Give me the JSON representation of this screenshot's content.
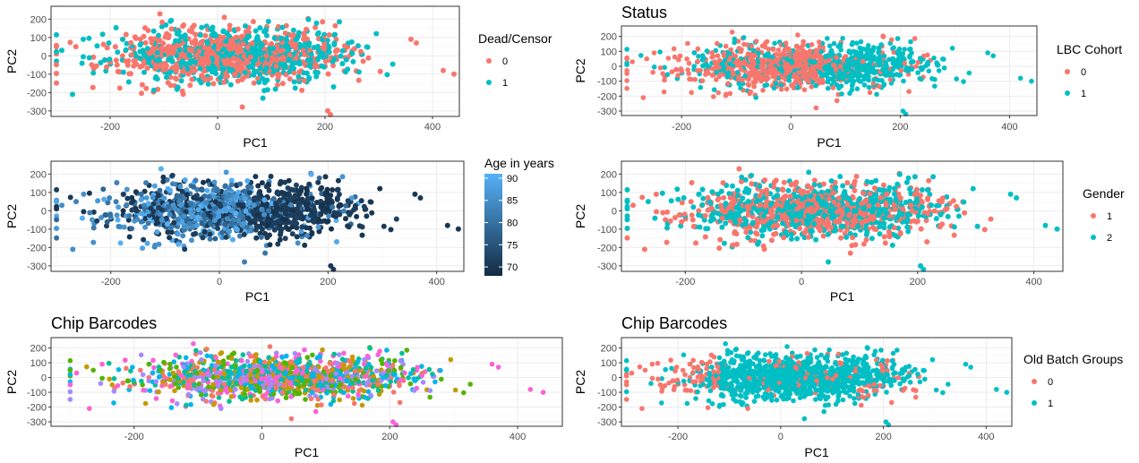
{
  "colors": {
    "red": "#F8766D",
    "teal": "#00BFC4",
    "age_low": "#132B43",
    "age_high": "#56B1F7",
    "chip_palette": [
      "#F8766D",
      "#C49A00",
      "#53B400",
      "#00C094",
      "#00B6EB",
      "#A58AFF",
      "#FB61D7"
    ]
  },
  "chart_data": [
    {
      "id": "p1",
      "type": "scatter",
      "title": "",
      "xlabel": "PC1",
      "ylabel": "PC2",
      "xlim": [
        -310,
        450
      ],
      "ylim": [
        -330,
        270
      ],
      "xticks": [
        -200,
        0,
        200,
        400
      ],
      "yticks": [
        -300,
        -200,
        -100,
        0,
        100,
        200
      ],
      "legend": {
        "kind": "discrete",
        "title": "Dead/Censor",
        "entries": [
          "0",
          "1"
        ],
        "colors": [
          "#F8766D",
          "#00BFC4"
        ],
        "position": "right"
      },
      "color_by": "dead",
      "grid": true
    },
    {
      "id": "p2",
      "type": "scatter",
      "title": "Status",
      "xlabel": "PC1",
      "ylabel": "PC2",
      "xlim": [
        -310,
        450
      ],
      "ylim": [
        -330,
        270
      ],
      "xticks": [
        -200,
        0,
        200,
        400
      ],
      "yticks": [
        -300,
        -200,
        -100,
        0,
        100,
        200
      ],
      "legend": {
        "kind": "discrete",
        "title": "LBC Cohort",
        "entries": [
          "0",
          "1"
        ],
        "colors": [
          "#F8766D",
          "#00BFC4"
        ],
        "position": "right"
      },
      "color_by": "cohort",
      "grid": true
    },
    {
      "id": "p3",
      "type": "scatter",
      "title": "",
      "xlabel": "PC1",
      "ylabel": "PC2",
      "xlim": [
        -310,
        450
      ],
      "ylim": [
        -330,
        270
      ],
      "xticks": [
        -200,
        0,
        200,
        400
      ],
      "yticks": [
        -300,
        -200,
        -100,
        0,
        100,
        200
      ],
      "legend": {
        "kind": "continuous",
        "title": "Age in years",
        "ticks": [
          "90",
          "85",
          "80",
          "75",
          "70"
        ],
        "range": [
          68,
          91
        ],
        "position": "right"
      },
      "color_by": "age",
      "grid": true
    },
    {
      "id": "p4",
      "type": "scatter",
      "title": "",
      "xlabel": "PC1",
      "ylabel": "PC2",
      "xlim": [
        -310,
        450
      ],
      "ylim": [
        -330,
        270
      ],
      "xticks": [
        -200,
        0,
        200,
        400
      ],
      "yticks": [
        -300,
        -200,
        -100,
        0,
        100,
        200
      ],
      "legend": {
        "kind": "discrete",
        "title": "Gender",
        "entries": [
          "1",
          "2"
        ],
        "colors": [
          "#F8766D",
          "#00BFC4"
        ],
        "position": "right"
      },
      "color_by": "gender",
      "grid": true
    },
    {
      "id": "p5",
      "type": "scatter",
      "title": "Chip Barcodes",
      "xlabel": "PC1",
      "ylabel": "PC2",
      "xlim": [
        -330,
        470
      ],
      "ylim": [
        -330,
        270
      ],
      "xticks": [
        -200,
        0,
        200,
        400
      ],
      "yticks": [
        -300,
        -200,
        -100,
        0,
        100,
        200
      ],
      "legend": null,
      "color_by": "chip",
      "grid": true
    },
    {
      "id": "p6",
      "type": "scatter",
      "title": "Chip Barcodes",
      "xlabel": "PC1",
      "ylabel": "PC2",
      "xlim": [
        -310,
        450
      ],
      "ylim": [
        -330,
        270
      ],
      "xticks": [
        -200,
        0,
        200,
        400
      ],
      "yticks": [
        -300,
        -200,
        -100,
        0,
        100,
        200
      ],
      "legend": {
        "kind": "discrete",
        "title": "Old Batch Groups",
        "entries": [
          "0",
          "1"
        ],
        "colors": [
          "#F8766D",
          "#00BFC4"
        ],
        "position": "right"
      },
      "color_by": "batch",
      "grid": true
    }
  ]
}
